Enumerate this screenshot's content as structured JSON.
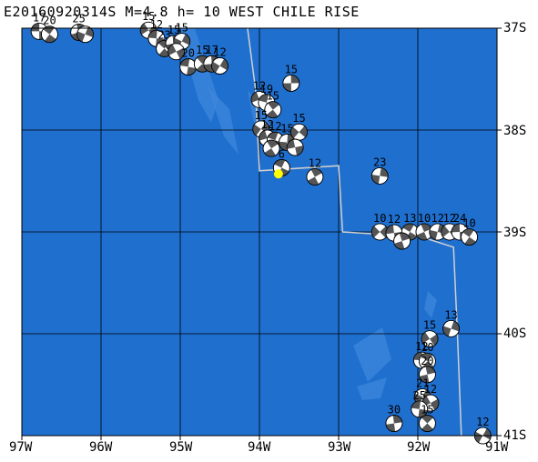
{
  "title": "E20160920314S M=4.8 h= 10 WEST CHILE RISE",
  "map": {
    "region": "WEST CHILE RISE",
    "lon_range": [
      -97,
      -91
    ],
    "lat_range": [
      -41,
      -37
    ],
    "lat_labels": [
      "37S",
      "38S",
      "39S",
      "40S",
      "41S"
    ],
    "lon_labels": [
      "97W",
      "96W",
      "95W",
      "94W",
      "93W",
      "92W",
      "91W"
    ],
    "ocean_color": "#1f6fcf",
    "frame_color": "#000000",
    "event_marker": {
      "lon": -93.76,
      "lat": -38.43,
      "color": "#ffff00"
    },
    "ridge_line": [
      [
        -94.15,
        -37.0
      ],
      [
        -94.05,
        -37.6
      ],
      [
        -94.02,
        -38.1
      ],
      [
        -94.0,
        -38.4
      ],
      [
        -93.0,
        -38.35
      ],
      [
        -92.95,
        -39.0
      ],
      [
        -91.95,
        -39.05
      ],
      [
        -91.55,
        -39.15
      ],
      [
        -91.5,
        -40.0
      ],
      [
        -91.45,
        -41.0
      ]
    ],
    "mechanisms": [
      {
        "lon": -96.78,
        "lat": -37.03,
        "depth": "17"
      },
      {
        "lon": -96.65,
        "lat": -37.06,
        "depth": "20"
      },
      {
        "lon": -96.28,
        "lat": -37.04,
        "depth": "25"
      },
      {
        "lon": -96.2,
        "lat": -37.06,
        "depth": ""
      },
      {
        "lon": -95.4,
        "lat": -37.02,
        "depth": "15"
      },
      {
        "lon": -95.3,
        "lat": -37.1,
        "depth": "12"
      },
      {
        "lon": -95.2,
        "lat": -37.2,
        "depth": "23"
      },
      {
        "lon": -95.08,
        "lat": -37.15,
        "depth": "15"
      },
      {
        "lon": -94.98,
        "lat": -37.13,
        "depth": "15"
      },
      {
        "lon": -95.05,
        "lat": -37.23,
        "depth": ""
      },
      {
        "lon": -94.9,
        "lat": -37.38,
        "depth": "20"
      },
      {
        "lon": -94.72,
        "lat": -37.35,
        "depth": "15"
      },
      {
        "lon": -94.6,
        "lat": -37.35,
        "depth": "17"
      },
      {
        "lon": -94.5,
        "lat": -37.37,
        "depth": "12"
      },
      {
        "lon": -94.0,
        "lat": -37.7,
        "depth": "12"
      },
      {
        "lon": -93.91,
        "lat": -37.73,
        "depth": "19"
      },
      {
        "lon": -93.83,
        "lat": -37.8,
        "depth": "15"
      },
      {
        "lon": -93.6,
        "lat": -37.54,
        "depth": "15"
      },
      {
        "lon": -93.98,
        "lat": -37.99,
        "depth": "15"
      },
      {
        "lon": -93.9,
        "lat": -38.08,
        "depth": "12"
      },
      {
        "lon": -93.8,
        "lat": -38.1,
        "depth": "12"
      },
      {
        "lon": -93.85,
        "lat": -38.18,
        "depth": ""
      },
      {
        "lon": -93.65,
        "lat": -38.12,
        "depth": "15"
      },
      {
        "lon": -93.5,
        "lat": -38.02,
        "depth": "15"
      },
      {
        "lon": -93.55,
        "lat": -38.17,
        "depth": ""
      },
      {
        "lon": -93.72,
        "lat": -38.37,
        "depth": "6"
      },
      {
        "lon": -93.3,
        "lat": -38.46,
        "depth": "12"
      },
      {
        "lon": -92.48,
        "lat": -38.45,
        "depth": "23"
      },
      {
        "lon": -92.48,
        "lat": -39.0,
        "depth": "10"
      },
      {
        "lon": -92.3,
        "lat": -39.01,
        "depth": "12"
      },
      {
        "lon": -92.1,
        "lat": -39.0,
        "depth": "13"
      },
      {
        "lon": -91.92,
        "lat": -39.0,
        "depth": "10"
      },
      {
        "lon": -91.75,
        "lat": -39.0,
        "depth": "12"
      },
      {
        "lon": -91.6,
        "lat": -39.0,
        "depth": "12"
      },
      {
        "lon": -91.47,
        "lat": -39.0,
        "depth": "24"
      },
      {
        "lon": -91.35,
        "lat": -39.05,
        "depth": "10"
      },
      {
        "lon": -92.2,
        "lat": -39.09,
        "depth": ""
      },
      {
        "lon": -91.58,
        "lat": -39.95,
        "depth": "13"
      },
      {
        "lon": -91.85,
        "lat": -40.05,
        "depth": "15"
      },
      {
        "lon": -91.95,
        "lat": -40.26,
        "depth": "12"
      },
      {
        "lon": -91.88,
        "lat": -40.27,
        "depth": "10"
      },
      {
        "lon": -91.88,
        "lat": -40.4,
        "depth": "20"
      },
      {
        "lon": -91.94,
        "lat": -40.62,
        "depth": "21"
      },
      {
        "lon": -91.84,
        "lat": -40.68,
        "depth": "12"
      },
      {
        "lon": -91.98,
        "lat": -40.74,
        "depth": "25"
      },
      {
        "lon": -91.88,
        "lat": -40.88,
        "depth": "15"
      },
      {
        "lon": -92.3,
        "lat": -40.88,
        "depth": "30"
      },
      {
        "lon": -91.18,
        "lat": -41.0,
        "depth": "12"
      }
    ]
  }
}
